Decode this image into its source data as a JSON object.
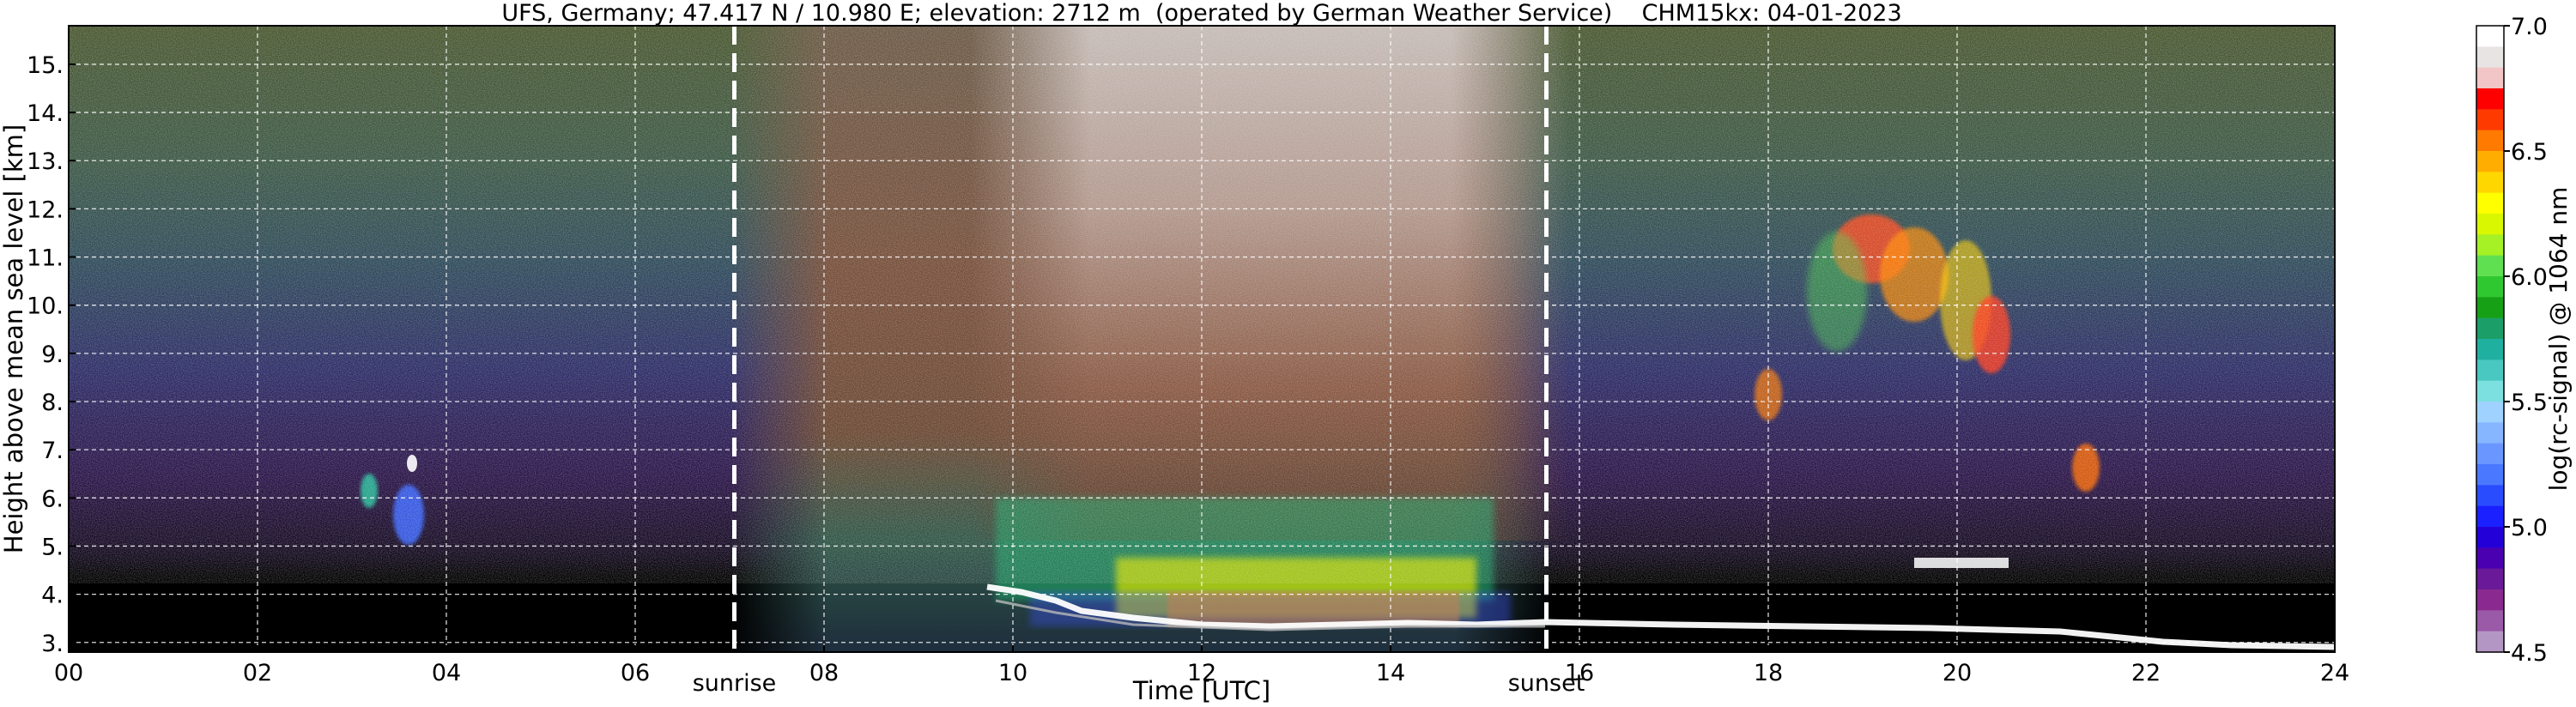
{
  "chart_data": {
    "type": "heatmap",
    "title": "UFS, Germany; 47.417 N / 10.980 E; elevation: 2712 m  (operated by German Weather Service)    CHM15kx: 04-01-2023",
    "xlabel": "Time [UTC]",
    "ylabel": "Height above mean sea level [km]",
    "xlim": [
      0,
      24
    ],
    "ylim": [
      2.8,
      15.8
    ],
    "xticks": [
      "00",
      "02",
      "04",
      "06",
      "08",
      "10",
      "12",
      "14",
      "16",
      "18",
      "20",
      "22",
      "24"
    ],
    "yticks": [
      "3.",
      "4.",
      "5.",
      "6.",
      "7.",
      "8.",
      "9.",
      "10.",
      "11.",
      "12.",
      "13.",
      "14.",
      "15."
    ],
    "grid": true,
    "annotations": [
      {
        "label": "sunrise",
        "x": 7.05
      },
      {
        "label": "sunset",
        "x": 15.65
      }
    ],
    "colorbar": {
      "label": "log(rc-signal) @ 1064 nm",
      "range": [
        4.5,
        7.0
      ],
      "ticks": [
        "7.0",
        "6.5",
        "6.0",
        "5.5",
        "5.0",
        "4.5"
      ],
      "colors": [
        "#ffffff",
        "#e8e4e4",
        "#f2c6c6",
        "#ff0000",
        "#ff3a00",
        "#ff7a00",
        "#ffad00",
        "#ffd700",
        "#ffff00",
        "#d9f700",
        "#a6f026",
        "#5fe050",
        "#30c830",
        "#16a016",
        "#1c9e68",
        "#20b0a0",
        "#48c8c0",
        "#7ce0e0",
        "#9fd2ff",
        "#86b6ff",
        "#6a96ff",
        "#4a78ff",
        "#2a4cff",
        "#1a20ff",
        "#2400d8",
        "#4a00b0",
        "#6a1a98",
        "#8a2a90",
        "#9a5aa8",
        "#b496c4"
      ]
    },
    "features": [
      {
        "name": "boundary layer cloud top",
        "x": [
          9.8,
          10.5,
          11.0,
          12.0,
          13.0,
          14.0,
          15.0,
          15.6,
          17.0,
          19.0,
          21.0,
          22.0,
          23.0
        ],
        "height_km": [
          3.98,
          3.65,
          3.45,
          3.3,
          3.2,
          3.25,
          3.25,
          3.35,
          3.25,
          3.2,
          3.15,
          3.05,
          2.95
        ]
      },
      {
        "name": "cirrus",
        "x_range": [
          17.0,
          21.0
        ],
        "height_km_range": [
          7.7,
          11.7
        ]
      },
      {
        "name": "mid-level cloud",
        "x_range": [
          3.0,
          3.7
        ],
        "height_km_range": [
          5.1,
          6.7
        ]
      },
      {
        "name": "mid-level cloud",
        "x_range": [
          20.8,
          21.1
        ],
        "height_km_range": [
          6.0,
          7.0
        ]
      }
    ]
  }
}
